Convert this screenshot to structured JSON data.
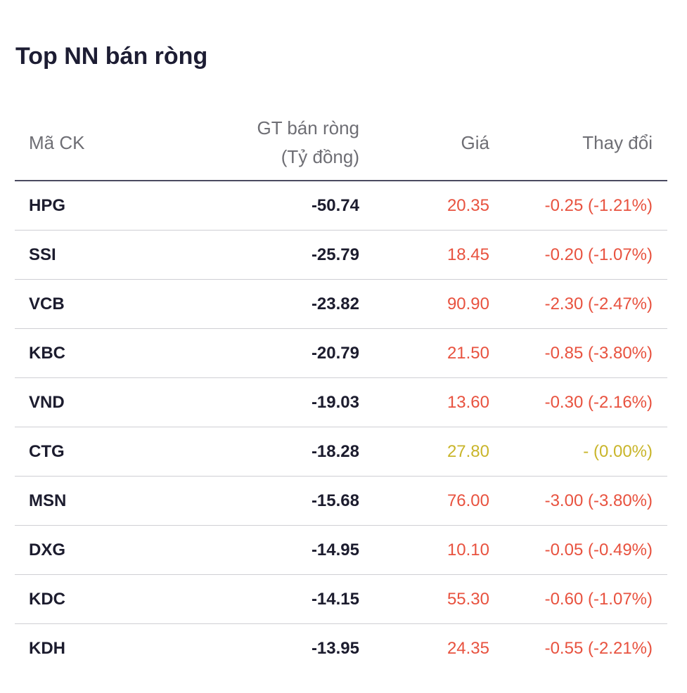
{
  "title": "Top NN bán ròng",
  "columns": {
    "symbol": "Mã CK",
    "net_line1": "GT bán ròng",
    "net_line2": "(Tỷ đồng)",
    "price": "Giá",
    "change": "Thay đổi"
  },
  "colors": {
    "down": "#e8523f",
    "unchanged": "#c9b52a",
    "text": "#1c1c2e",
    "header_text": "#6e6e74"
  },
  "rows": [
    {
      "symbol": "HPG",
      "net_sell": "-50.74",
      "price": "20.35",
      "change": "-0.25 (-1.21%)",
      "trend": "down"
    },
    {
      "symbol": "SSI",
      "net_sell": "-25.79",
      "price": "18.45",
      "change": "-0.20 (-1.07%)",
      "trend": "down"
    },
    {
      "symbol": "VCB",
      "net_sell": "-23.82",
      "price": "90.90",
      "change": "-2.30 (-2.47%)",
      "trend": "down"
    },
    {
      "symbol": "KBC",
      "net_sell": "-20.79",
      "price": "21.50",
      "change": "-0.85 (-3.80%)",
      "trend": "down"
    },
    {
      "symbol": "VND",
      "net_sell": "-19.03",
      "price": "13.60",
      "change": "-0.30 (-2.16%)",
      "trend": "down"
    },
    {
      "symbol": "CTG",
      "net_sell": "-18.28",
      "price": "27.80",
      "change": "- (0.00%)",
      "trend": "flat"
    },
    {
      "symbol": "MSN",
      "net_sell": "-15.68",
      "price": "76.00",
      "change": "-3.00 (-3.80%)",
      "trend": "down"
    },
    {
      "symbol": "DXG",
      "net_sell": "-14.95",
      "price": "10.10",
      "change": "-0.05 (-0.49%)",
      "trend": "down"
    },
    {
      "symbol": "KDC",
      "net_sell": "-14.15",
      "price": "55.30",
      "change": "-0.60 (-1.07%)",
      "trend": "down"
    },
    {
      "symbol": "KDH",
      "net_sell": "-13.95",
      "price": "24.35",
      "change": "-0.55 (-2.21%)",
      "trend": "down"
    }
  ]
}
